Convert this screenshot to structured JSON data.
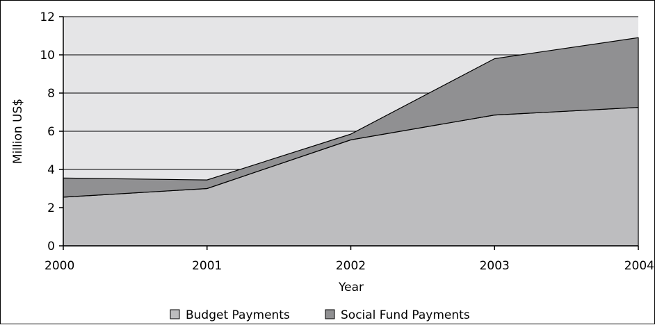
{
  "chart_data": {
    "type": "area",
    "stacked": true,
    "categories": [
      "2000",
      "2001",
      "2002",
      "2003",
      "2004"
    ],
    "series": [
      {
        "name": "Budget Payments",
        "values": [
          2.55,
          3.0,
          5.55,
          6.85,
          7.25
        ],
        "color": "#bdbdbf"
      },
      {
        "name": "Social Fund Payments",
        "values": [
          1.0,
          0.45,
          0.3,
          2.95,
          3.65
        ],
        "color": "#909092"
      }
    ],
    "xlabel": "Year",
    "ylabel": "Million US$",
    "ylim": [
      0,
      12
    ],
    "yticks": [
      0,
      2,
      4,
      6,
      8,
      10,
      12
    ],
    "grid": true,
    "plot_background": "#e5e5e7",
    "legend_position": "bottom"
  }
}
